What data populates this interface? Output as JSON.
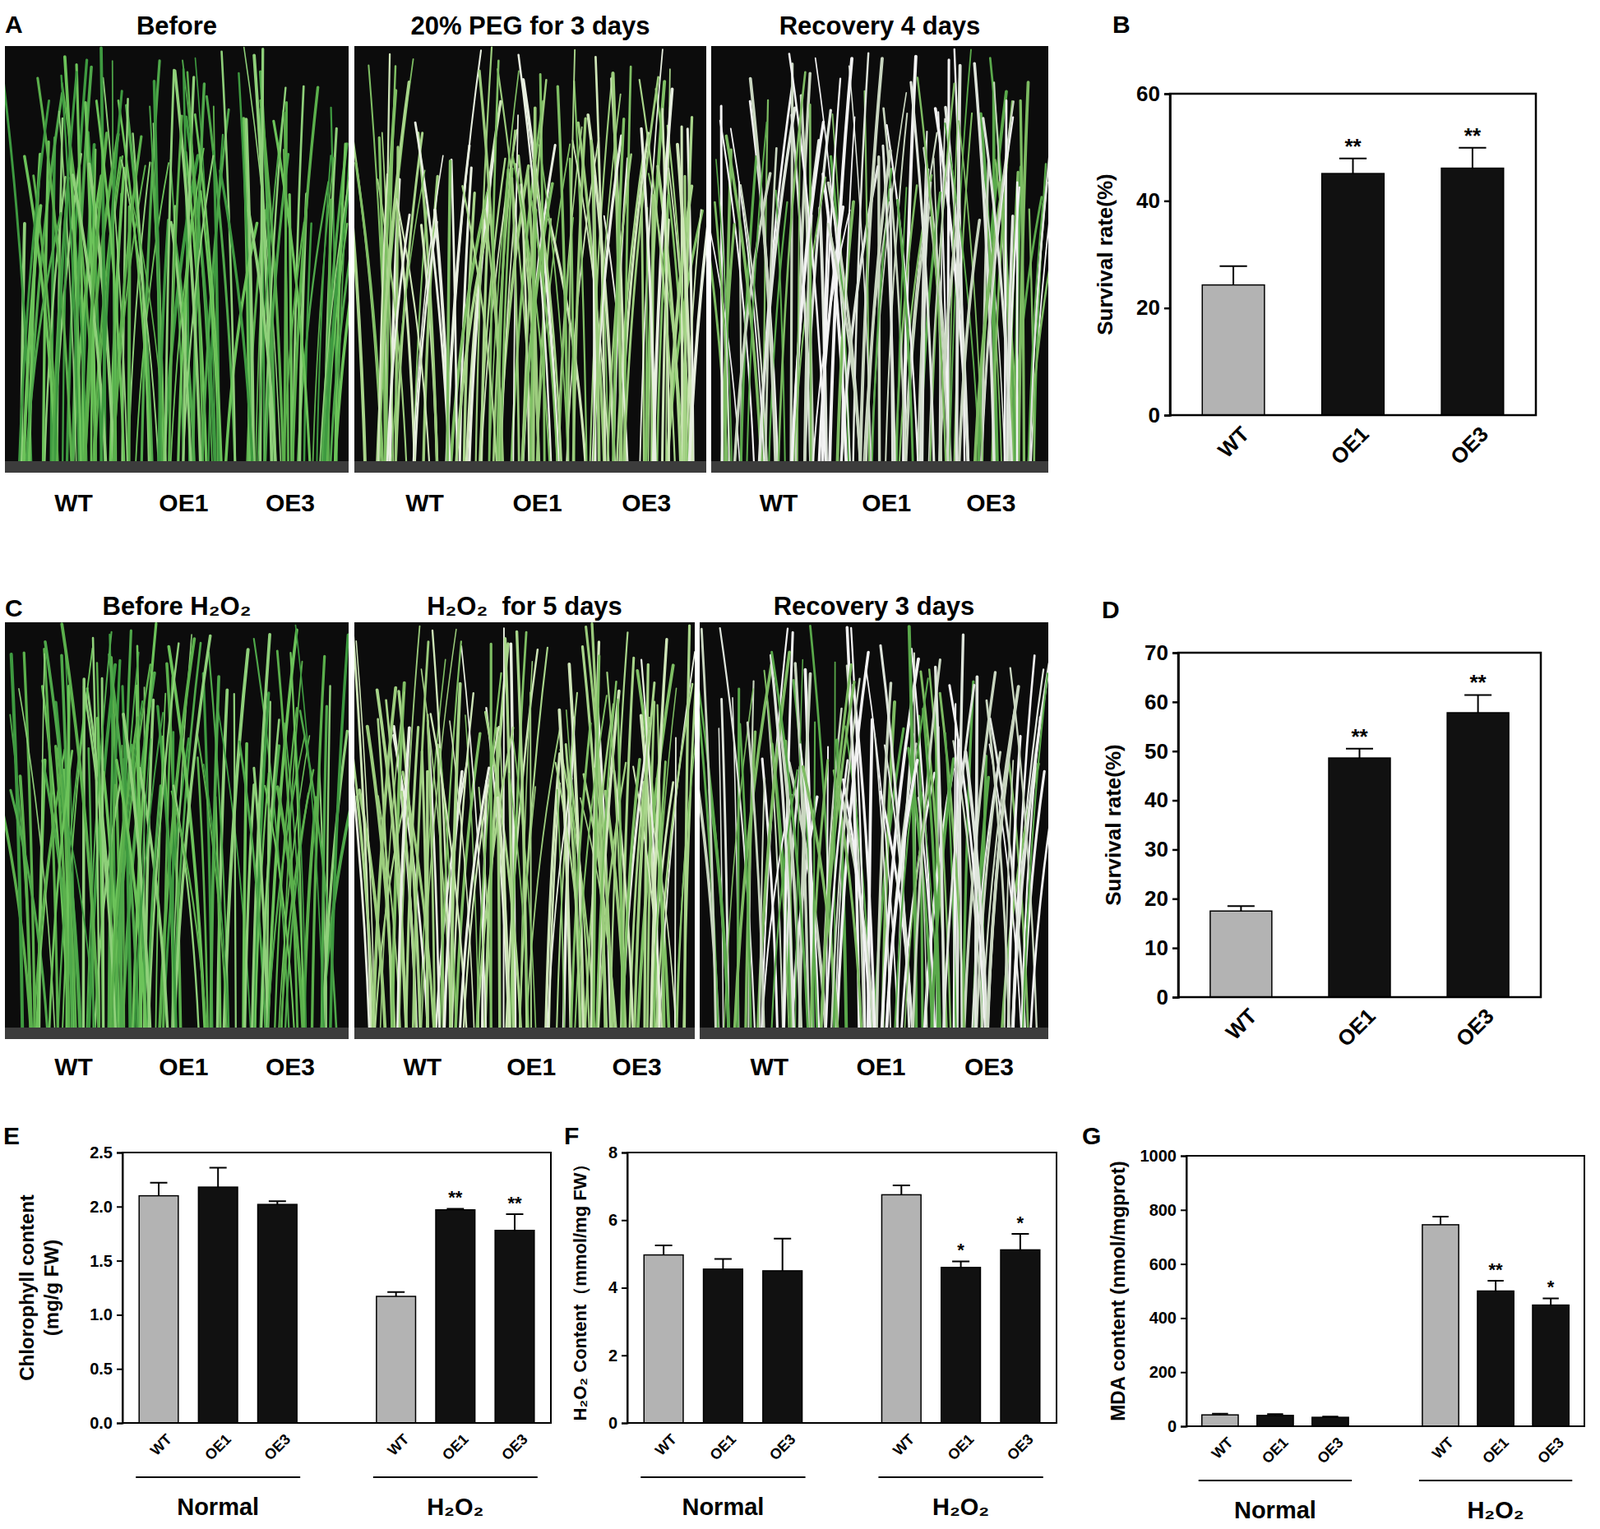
{
  "chart_data": [
    {
      "panel": "B",
      "type": "bar",
      "ylabel": "Survival rate(%)",
      "categories": [
        "WT",
        "OE1",
        "OE3"
      ],
      "values": [
        24.3,
        45.1,
        46.1
      ],
      "errors": [
        3.5,
        2.8,
        3.8
      ],
      "significance": [
        null,
        "**",
        "**"
      ],
      "colors": [
        "#b3b3b3",
        "#111111",
        "#111111"
      ],
      "ylim": [
        0,
        60
      ],
      "yticks": [
        0,
        20,
        40,
        60
      ]
    },
    {
      "panel": "D",
      "type": "bar",
      "ylabel": "Survival rate(%)",
      "categories": [
        "WT",
        "OE1",
        "OE3"
      ],
      "values": [
        17.5,
        48.6,
        57.8
      ],
      "errors": [
        1.0,
        1.9,
        3.6
      ],
      "significance": [
        null,
        "**",
        "**"
      ],
      "colors": [
        "#b3b3b3",
        "#111111",
        "#111111"
      ],
      "ylim": [
        0,
        70
      ],
      "yticks": [
        0,
        10,
        20,
        30,
        40,
        50,
        60,
        70
      ]
    },
    {
      "panel": "E",
      "type": "bar",
      "ylabel": [
        "Chlorophyll content",
        "(mg/g FW)"
      ],
      "groups": [
        "Normal",
        "H₂O₂"
      ],
      "categories": [
        "WT",
        "OE1",
        "OE3",
        "WT",
        "OE1",
        "OE3"
      ],
      "values": [
        2.1,
        2.18,
        2.02,
        1.17,
        1.97,
        1.78
      ],
      "errors": [
        0.12,
        0.18,
        0.03,
        0.04,
        0.01,
        0.15
      ],
      "significance": [
        null,
        null,
        null,
        null,
        "**",
        "**"
      ],
      "colors": [
        "#b3b3b3",
        "#111111",
        "#111111",
        "#b3b3b3",
        "#111111",
        "#111111"
      ],
      "ylim": [
        0,
        2.5
      ],
      "yticks": [
        {
          "value": 0,
          "label": "0.0"
        },
        0.5,
        {
          "value": 1,
          "label": "1.0"
        },
        1.5,
        {
          "value": 2,
          "label": "2.0"
        },
        2.5
      ]
    },
    {
      "panel": "F",
      "type": "bar",
      "ylabel": "H₂O₂ Content（mmol/mg FW）",
      "groups": [
        "Normal",
        "H₂O₂"
      ],
      "categories": [
        "WT",
        "OE1",
        "OE3",
        "WT",
        "OE1",
        "OE3"
      ],
      "values": [
        4.97,
        4.55,
        4.5,
        6.75,
        4.6,
        5.12
      ],
      "errors": [
        0.28,
        0.3,
        0.95,
        0.28,
        0.18,
        0.47
      ],
      "significance": [
        null,
        null,
        null,
        null,
        "*",
        "*"
      ],
      "colors": [
        "#b3b3b3",
        "#111111",
        "#111111",
        "#b3b3b3",
        "#111111",
        "#111111"
      ],
      "ylim": [
        0,
        8
      ],
      "yticks": [
        0,
        2,
        4,
        6,
        8
      ]
    },
    {
      "panel": "G",
      "type": "bar",
      "ylabel": "MDA content (nmol/mgprot)",
      "groups": [
        "Normal",
        "H₂O₂"
      ],
      "categories": [
        "WT",
        "OE1",
        "OE3",
        "WT",
        "OE1",
        "OE3"
      ],
      "values": [
        42,
        40,
        33,
        745,
        500,
        448
      ],
      "errors": [
        4,
        5,
        3,
        30,
        38,
        25
      ],
      "significance": [
        null,
        null,
        null,
        null,
        "**",
        "*"
      ],
      "colors": [
        "#b3b3b3",
        "#111111",
        "#111111",
        "#b3b3b3",
        "#111111",
        "#111111"
      ],
      "ylim": [
        0,
        1000
      ],
      "yticks": [
        0,
        200,
        400,
        600,
        800,
        1000
      ]
    }
  ],
  "photo_panels": [
    {
      "panel": "A",
      "titles": [
        "Before",
        "20% PEG for 3 days",
        "Recovery 4 days"
      ],
      "labels": [
        [
          "WT",
          "OE1",
          "OE3"
        ],
        [
          "WT",
          "OE1",
          "OE3"
        ],
        [
          "WT",
          "OE1",
          "OE3"
        ]
      ]
    },
    {
      "panel": "C",
      "titles": [
        "Before H₂O₂",
        "H₂O₂  for 5 days",
        "Recovery 3 days"
      ],
      "labels": [
        [
          "WT",
          "OE1",
          "OE3"
        ],
        [
          "WT",
          "OE1",
          "OE3"
        ],
        [
          "WT",
          "OE1",
          "OE3"
        ]
      ]
    }
  ]
}
